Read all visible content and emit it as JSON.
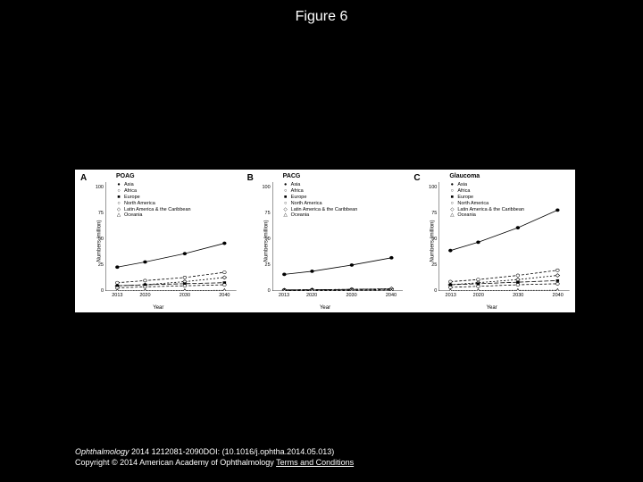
{
  "title": "Figure 6",
  "figure": {
    "background_color": "#ffffff",
    "axis_color": "#000000",
    "xlabel": "Year",
    "ylabel": "Numbers (million)",
    "x_ticks": [
      2013,
      2020,
      2030,
      2040
    ],
    "xlim": [
      2010,
      2043
    ],
    "series_style": {
      "Asia": {
        "marker": "●",
        "dash": ""
      },
      "Africa": {
        "marker": "○",
        "dash": "3,2"
      },
      "Europe": {
        "marker": "■",
        "dash": "5,2"
      },
      "North America": {
        "marker": "○",
        "dash": "3,2"
      },
      "Latin America & the Caribbean": {
        "marker": "◇",
        "dash": "2,2"
      },
      "Oceania": {
        "marker": "△",
        "dash": "1,2"
      }
    },
    "legend_order": [
      "Asia",
      "Africa",
      "Europe",
      "North America",
      "Latin America & the Caribbean",
      "Oceania"
    ],
    "panels": [
      {
        "letter": "A",
        "title": "POAG",
        "ylim": [
          0,
          105
        ],
        "y_ticks": [
          0,
          25,
          50,
          75,
          100
        ],
        "series": {
          "Asia": {
            "2013": 23,
            "2020": 28,
            "2030": 36,
            "2040": 46
          },
          "Africa": {
            "2013": 8,
            "2020": 10,
            "2030": 13,
            "2040": 18
          },
          "Latin America & the Caribbean": {
            "2013": 5,
            "2020": 6,
            "2030": 9,
            "2040": 13
          },
          "Europe": {
            "2013": 5,
            "2020": 6,
            "2030": 7,
            "2040": 8
          },
          "North America": {
            "2013": 3,
            "2020": 4,
            "2030": 5,
            "2040": 6
          },
          "Oceania": {
            "2013": 0.3,
            "2020": 0.4,
            "2030": 0.5,
            "2040": 0.6
          }
        }
      },
      {
        "letter": "B",
        "title": "PACG",
        "ylim": [
          0,
          105
        ],
        "y_ticks": [
          0,
          25,
          50,
          75,
          100
        ],
        "series": {
          "Asia": {
            "2013": 16,
            "2020": 19,
            "2030": 25,
            "2040": 32
          },
          "Africa": {
            "2013": 1,
            "2020": 1.2,
            "2030": 1.6,
            "2040": 2
          },
          "Europe": {
            "2013": 1,
            "2020": 1.2,
            "2030": 1.5,
            "2040": 1.8
          },
          "Latin America & the Caribbean": {
            "2013": 1,
            "2020": 1.2,
            "2030": 1.6,
            "2040": 2.2
          },
          "North America": {
            "2013": 0.5,
            "2020": 0.6,
            "2030": 0.8,
            "2040": 1
          },
          "Oceania": {
            "2013": 0.05,
            "2020": 0.06,
            "2030": 0.08,
            "2040": 0.1
          }
        }
      },
      {
        "letter": "C",
        "title": "Glaucoma",
        "ylim": [
          0,
          105
        ],
        "y_ticks": [
          0,
          25,
          50,
          75,
          100
        ],
        "series": {
          "Asia": {
            "2013": 39,
            "2020": 47,
            "2030": 61,
            "2040": 78
          },
          "Africa": {
            "2013": 9,
            "2020": 11,
            "2030": 15,
            "2040": 20
          },
          "Latin America & the Caribbean": {
            "2013": 6,
            "2020": 8,
            "2030": 11,
            "2040": 15
          },
          "Europe": {
            "2013": 6,
            "2020": 7,
            "2030": 8.5,
            "2040": 10
          },
          "North America": {
            "2013": 3.5,
            "2020": 4.5,
            "2030": 6,
            "2040": 7
          },
          "Oceania": {
            "2013": 0.35,
            "2020": 0.45,
            "2030": 0.6,
            "2040": 0.7
          }
        }
      }
    ]
  },
  "footer": {
    "journal": "Ophthalmology",
    "citation_rest": " 2014 1212081-2090DOI: (10.1016/j.ophtha.2014.05.013)",
    "copyright_pre": "Copyright © 2014 American Academy of Ophthalmology ",
    "terms_text": "Terms and Conditions"
  }
}
